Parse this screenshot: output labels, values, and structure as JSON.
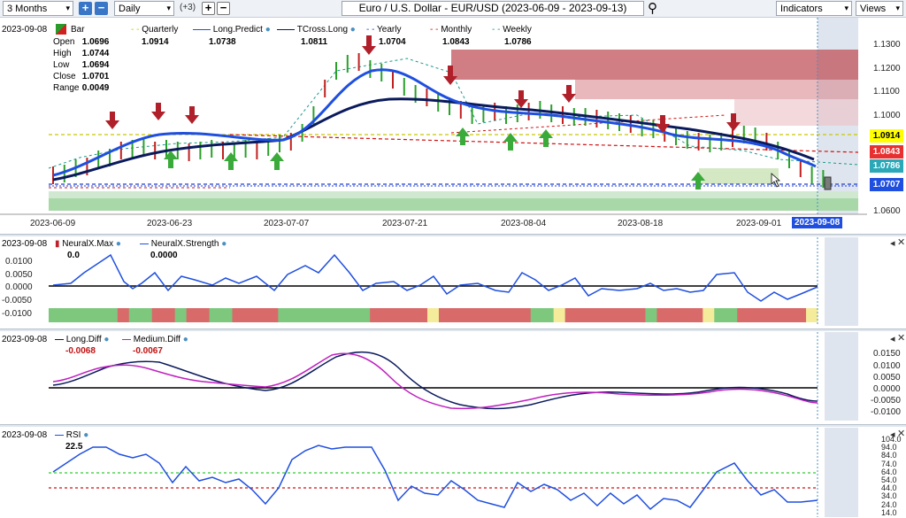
{
  "toolbar": {
    "period": "3 Months",
    "interval": "Daily",
    "offset": "(+3)",
    "title": "Euro / U.S. Dollar - EUR/USD (2023-06-09 - 2023-09-13)",
    "indicators": "Indicators",
    "views": "Views"
  },
  "main_pane": {
    "date": "2023-09-08",
    "bar_label": "Bar",
    "ohlc": [
      {
        "label": "Open",
        "value": "1.0696"
      },
      {
        "label": "High",
        "value": "1.0744"
      },
      {
        "label": "Low",
        "value": "1.0694"
      },
      {
        "label": "Close",
        "value": "1.0701"
      },
      {
        "label": "Range",
        "value": "0.0049"
      }
    ],
    "legend": [
      {
        "name": "Quarterly",
        "value": "1.0914",
        "color": "#c8c800"
      },
      {
        "name": "Long.Predict",
        "value": "1.0738",
        "color": "#1f4fe0"
      },
      {
        "name": "TCross.Long",
        "value": "1.0811",
        "color": "#0a1a5c"
      },
      {
        "name": "Yearly",
        "value": "1.0704",
        "color": "#1f3fd0"
      },
      {
        "name": "Monthly",
        "value": "1.0843",
        "color": "#d01010"
      },
      {
        "name": "Weekly",
        "value": "1.0786",
        "color": "#1a9a8a"
      }
    ],
    "price_tags": [
      {
        "value": "1.0914",
        "bg": "#ffff00",
        "fg": "#000000"
      },
      {
        "value": "1.0843",
        "bg": "#e83030",
        "fg": "#ffffff"
      },
      {
        "value": "1.0786",
        "bg": "#2aa8b8",
        "fg": "#ffffff"
      },
      {
        "value": "1.0707",
        "bg": "#1f4fe0",
        "fg": "#ffffff"
      }
    ],
    "y_ticks": [
      "1.1300",
      "1.1200",
      "1.1100",
      "1.1000",
      "1.0600"
    ],
    "x_ticks": [
      "2023-06-09",
      "2023-06-23",
      "2023-07-07",
      "2023-07-21",
      "2023-08-04",
      "2023-08-18",
      "2023-09-01"
    ],
    "current_date": "2023-09-08"
  },
  "neural_pane": {
    "date": "2023-09-08",
    "legend": [
      {
        "name": "NeuralX.Max",
        "value": "0.0"
      },
      {
        "name": "NeuralX.Strength",
        "value": "0.0000"
      }
    ],
    "y_ticks": [
      "0.0100",
      "0.0050",
      "0.0000",
      "-0.0050",
      "-0.0100"
    ]
  },
  "diff_pane": {
    "date": "2023-09-08",
    "legend": [
      {
        "name": "Long.Diff",
        "value": "-0.0068",
        "color": "#0a1a5c"
      },
      {
        "name": "Medium.Diff",
        "value": "-0.0067",
        "color": "#c020c0"
      }
    ],
    "y_ticks": [
      "0.0150",
      "0.0100",
      "0.0050",
      "0.0000",
      "-0.0050",
      "-0.0100"
    ]
  },
  "rsi_pane": {
    "date": "2023-09-08",
    "legend": [
      {
        "name": "RSI",
        "value": "22.5"
      }
    ],
    "y_ticks": [
      "104.0",
      "94.0",
      "84.0",
      "74.0",
      "64.0",
      "54.0",
      "44.0",
      "34.0",
      "24.0",
      "14.0"
    ]
  }
}
